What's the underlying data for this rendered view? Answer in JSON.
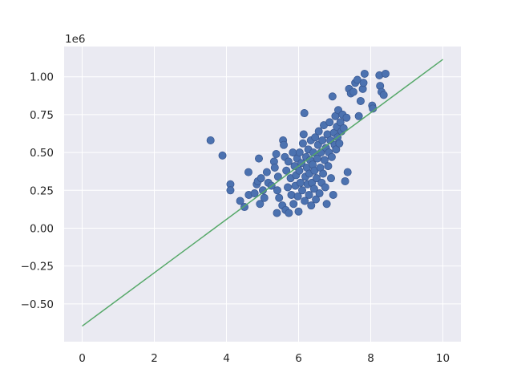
{
  "chart_data": {
    "type": "scatter",
    "title": "",
    "xlabel": "",
    "ylabel": "",
    "y_offset_label": "1e6",
    "xlim": [
      -0.5,
      10.5
    ],
    "ylim": [
      -0.75,
      1.2
    ],
    "x_ticks": [
      0,
      2,
      4,
      6,
      8,
      10
    ],
    "x_tick_labels": [
      "0",
      "2",
      "4",
      "6",
      "8",
      "10"
    ],
    "y_ticks": [
      -0.5,
      -0.25,
      0.0,
      0.25,
      0.5,
      0.75,
      1.0
    ],
    "y_tick_labels": [
      "−0.50",
      "−0.25",
      "0.00",
      "0.25",
      "0.50",
      "0.75",
      "1.00"
    ],
    "grid": true,
    "background": "#eaeaf2",
    "series": [
      {
        "kind": "scatter",
        "color": "#4c72b0",
        "points": [
          [
            3.56,
            0.58
          ],
          [
            3.89,
            0.48
          ],
          [
            4.11,
            0.29
          ],
          [
            4.11,
            0.25
          ],
          [
            4.38,
            0.18
          ],
          [
            4.5,
            0.14
          ],
          [
            4.61,
            0.37
          ],
          [
            4.62,
            0.22
          ],
          [
            4.78,
            0.23
          ],
          [
            4.84,
            0.29
          ],
          [
            4.87,
            0.31
          ],
          [
            4.9,
            0.46
          ],
          [
            4.93,
            0.16
          ],
          [
            4.96,
            0.33
          ],
          [
            5.01,
            0.25
          ],
          [
            5.05,
            0.2
          ],
          [
            5.12,
            0.37
          ],
          [
            5.16,
            0.3
          ],
          [
            5.25,
            0.28
          ],
          [
            5.32,
            0.44
          ],
          [
            5.34,
            0.4
          ],
          [
            5.38,
            0.49
          ],
          [
            5.4,
            0.1
          ],
          [
            5.41,
            0.25
          ],
          [
            5.43,
            0.34
          ],
          [
            5.46,
            0.2
          ],
          [
            5.55,
            0.15
          ],
          [
            5.57,
            0.58
          ],
          [
            5.59,
            0.55
          ],
          [
            5.62,
            0.47
          ],
          [
            5.64,
            0.12
          ],
          [
            5.66,
            0.38
          ],
          [
            5.7,
            0.27
          ],
          [
            5.72,
            0.44
          ],
          [
            5.73,
            0.1
          ],
          [
            5.78,
            0.33
          ],
          [
            5.8,
            0.22
          ],
          [
            5.84,
            0.5
          ],
          [
            5.86,
            0.16
          ],
          [
            5.89,
            0.41
          ],
          [
            5.91,
            0.28
          ],
          [
            5.93,
            0.35
          ],
          [
            5.96,
            0.46
          ],
          [
            5.98,
            0.21
          ],
          [
            6.0,
            0.11
          ],
          [
            6.02,
            0.38
          ],
          [
            6.03,
            0.5
          ],
          [
            6.05,
            0.3
          ],
          [
            6.08,
            0.43
          ],
          [
            6.1,
            0.25
          ],
          [
            6.12,
            0.56
          ],
          [
            6.14,
            0.62
          ],
          [
            6.16,
            0.76
          ],
          [
            6.17,
            0.18
          ],
          [
            6.19,
            0.34
          ],
          [
            6.21,
            0.47
          ],
          [
            6.23,
            0.4
          ],
          [
            6.25,
            0.29
          ],
          [
            6.27,
            0.52
          ],
          [
            6.29,
            0.22
          ],
          [
            6.3,
            0.36
          ],
          [
            6.32,
            0.45
          ],
          [
            6.34,
            0.58
          ],
          [
            6.35,
            0.15
          ],
          [
            6.37,
            0.3
          ],
          [
            6.39,
            0.42
          ],
          [
            6.41,
            0.5
          ],
          [
            6.43,
            0.26
          ],
          [
            6.44,
            0.38
          ],
          [
            6.46,
            0.6
          ],
          [
            6.48,
            0.19
          ],
          [
            6.5,
            0.33
          ],
          [
            6.52,
            0.46
          ],
          [
            6.54,
            0.55
          ],
          [
            6.56,
            0.64
          ],
          [
            6.58,
            0.23
          ],
          [
            6.6,
            0.4
          ],
          [
            6.62,
            0.5
          ],
          [
            6.64,
            0.3
          ],
          [
            6.66,
            0.58
          ],
          [
            6.68,
            0.36
          ],
          [
            6.7,
            0.68
          ],
          [
            6.72,
            0.45
          ],
          [
            6.74,
            0.27
          ],
          [
            6.76,
            0.53
          ],
          [
            6.78,
            0.16
          ],
          [
            6.8,
            0.62
          ],
          [
            6.82,
            0.41
          ],
          [
            6.84,
            0.5
          ],
          [
            6.86,
            0.7
          ],
          [
            6.88,
            0.58
          ],
          [
            6.9,
            0.33
          ],
          [
            6.92,
            0.47
          ],
          [
            6.94,
            0.87
          ],
          [
            6.96,
            0.22
          ],
          [
            6.98,
            0.63
          ],
          [
            7.0,
            0.55
          ],
          [
            7.02,
            0.74
          ],
          [
            7.04,
            0.52
          ],
          [
            7.06,
            0.67
          ],
          [
            7.08,
            0.6
          ],
          [
            7.1,
            0.78
          ],
          [
            7.13,
            0.56
          ],
          [
            7.16,
            0.7
          ],
          [
            7.19,
            0.64
          ],
          [
            7.22,
            0.75
          ],
          [
            7.25,
            0.66
          ],
          [
            7.29,
            0.31
          ],
          [
            7.33,
            0.73
          ],
          [
            7.36,
            0.37
          ],
          [
            7.4,
            0.92
          ],
          [
            7.45,
            0.89
          ],
          [
            7.52,
            0.9
          ],
          [
            7.57,
            0.96
          ],
          [
            7.63,
            0.98
          ],
          [
            7.67,
            0.74
          ],
          [
            7.72,
            0.84
          ],
          [
            7.78,
            0.92
          ],
          [
            7.8,
            0.96
          ],
          [
            7.83,
            1.02
          ],
          [
            8.04,
            0.81
          ],
          [
            8.06,
            0.79
          ],
          [
            8.24,
            1.01
          ],
          [
            8.26,
            0.94
          ],
          [
            8.3,
            0.9
          ],
          [
            8.36,
            0.88
          ],
          [
            8.41,
            1.02
          ]
        ]
      },
      {
        "kind": "line",
        "color": "#55a868",
        "points": [
          [
            0,
            -0.647
          ],
          [
            10,
            1.115
          ]
        ]
      }
    ]
  }
}
